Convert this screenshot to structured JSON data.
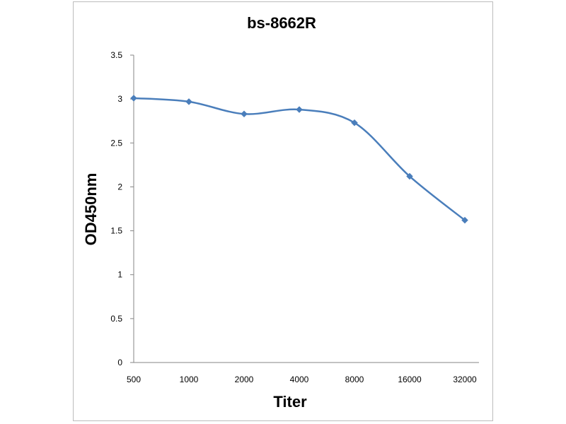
{
  "chart_data": {
    "type": "line",
    "title": "bs-8662R",
    "xlabel": "Titer",
    "ylabel": "OD450nm",
    "categories": [
      "500",
      "1000",
      "2000",
      "4000",
      "8000",
      "16000",
      "32000"
    ],
    "series": [
      {
        "values": [
          3.01,
          2.97,
          2.83,
          2.88,
          2.73,
          2.12,
          1.62
        ],
        "color": "#4a7ebb",
        "marker": "diamond"
      }
    ],
    "ylim": [
      0,
      3.5
    ],
    "yticks": [
      "0",
      "0.5",
      "1",
      "1.5",
      "2",
      "2.5",
      "3",
      "3.5"
    ],
    "grid": false,
    "legend": "none",
    "smooth": true
  }
}
